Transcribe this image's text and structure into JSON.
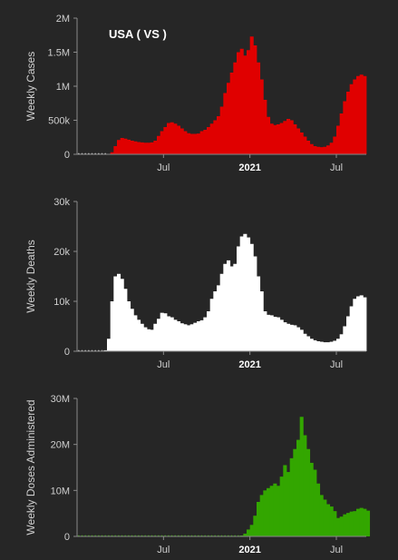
{
  "colors": {
    "background": "#262626",
    "axis": "#8a8a8a",
    "text": "#cfcfcf",
    "title": "#ffffff"
  },
  "chart_data": [
    {
      "type": "bar",
      "title": "USA  ( VS )",
      "ylabel": "Weekly Cases",
      "ylim": [
        0,
        2000000
      ],
      "yticks": [
        {
          "value": 0,
          "label": "0"
        },
        {
          "value": 500000,
          "label": "500k"
        },
        {
          "value": 1000000,
          "label": "1M"
        },
        {
          "value": 1500000,
          "label": "1.5M"
        },
        {
          "value": 2000000,
          "label": "2M"
        }
      ],
      "xticks": [
        {
          "week": 26,
          "label": "Jul",
          "bold": false
        },
        {
          "week": 52,
          "label": "2021",
          "bold": true
        },
        {
          "week": 78,
          "label": "Jul",
          "bold": false
        }
      ],
      "color": "#e00000",
      "weeks": 87,
      "values": [
        0,
        0,
        0,
        0,
        0,
        0,
        0,
        0,
        0,
        5000,
        30000,
        120000,
        210000,
        240000,
        230000,
        215000,
        200000,
        190000,
        180000,
        175000,
        170000,
        170000,
        175000,
        200000,
        270000,
        340000,
        400000,
        460000,
        470000,
        450000,
        420000,
        380000,
        340000,
        310000,
        300000,
        300000,
        305000,
        340000,
        360000,
        400000,
        450000,
        500000,
        560000,
        700000,
        900000,
        1050000,
        1200000,
        1350000,
        1500000,
        1550000,
        1450000,
        1530000,
        1730000,
        1600000,
        1350000,
        1100000,
        800000,
        550000,
        450000,
        430000,
        440000,
        460000,
        490000,
        520000,
        500000,
        440000,
        380000,
        320000,
        260000,
        200000,
        150000,
        120000,
        110000,
        105000,
        110000,
        130000,
        170000,
        260000,
        420000,
        600000,
        780000,
        920000,
        1030000,
        1100000,
        1150000,
        1170000,
        1150000
      ]
    },
    {
      "type": "bar",
      "ylabel": "Weekly Deaths",
      "ylim": [
        0,
        30000
      ],
      "yticks": [
        {
          "value": 0,
          "label": "0"
        },
        {
          "value": 10000,
          "label": "10k"
        },
        {
          "value": 20000,
          "label": "20k"
        },
        {
          "value": 30000,
          "label": "30k"
        }
      ],
      "xticks": [
        {
          "week": 26,
          "label": "Jul",
          "bold": false
        },
        {
          "week": 52,
          "label": "2021",
          "bold": true
        },
        {
          "week": 78,
          "label": "Jul",
          "bold": false
        }
      ],
      "color": "#ffffff",
      "weeks": 87,
      "values": [
        0,
        0,
        0,
        0,
        0,
        0,
        0,
        0,
        200,
        2500,
        10000,
        15000,
        15500,
        14500,
        12500,
        10000,
        8500,
        7200,
        6300,
        5500,
        4800,
        4400,
        4300,
        5500,
        6500,
        7700,
        7600,
        7000,
        6800,
        6300,
        6000,
        5600,
        5400,
        5200,
        5400,
        5700,
        6000,
        6200,
        6800,
        8000,
        10500,
        12000,
        13200,
        15500,
        17500,
        18200,
        17000,
        17500,
        21000,
        23000,
        23500,
        22800,
        21500,
        19000,
        15000,
        12000,
        8000,
        7300,
        7200,
        6900,
        6800,
        6300,
        5800,
        5500,
        5300,
        5200,
        4800,
        4300,
        3500,
        3000,
        2500,
        2200,
        2000,
        1900,
        1800,
        1800,
        1900,
        2100,
        2500,
        3400,
        5000,
        7000,
        9000,
        10500,
        11000,
        11200,
        10800
      ]
    },
    {
      "type": "bar",
      "ylabel": "Weekly Doses Administered",
      "ylim": [
        0,
        30000000
      ],
      "yticks": [
        {
          "value": 0,
          "label": "0"
        },
        {
          "value": 10000000,
          "label": "10M"
        },
        {
          "value": 20000000,
          "label": "20M"
        },
        {
          "value": 30000000,
          "label": "30M"
        }
      ],
      "xticks": [
        {
          "week": 26,
          "label": "Jul",
          "bold": false
        },
        {
          "week": 52,
          "label": "2021",
          "bold": true
        },
        {
          "week": 78,
          "label": "Jul",
          "bold": false
        }
      ],
      "color": "#33a600",
      "weeks": 87,
      "values": [
        0,
        0,
        0,
        0,
        0,
        0,
        0,
        0,
        0,
        0,
        0,
        0,
        0,
        0,
        0,
        0,
        0,
        0,
        0,
        0,
        0,
        0,
        0,
        0,
        0,
        0,
        0,
        0,
        0,
        0,
        0,
        0,
        0,
        0,
        0,
        0,
        0,
        0,
        0,
        0,
        0,
        0,
        0,
        0,
        0,
        0,
        0,
        0,
        0,
        200000,
        600000,
        1500000,
        2500000,
        4500000,
        7500000,
        9000000,
        10000000,
        10500000,
        11000000,
        11500000,
        11000000,
        13000000,
        15500000,
        14000000,
        17000000,
        19000000,
        21000000,
        26000000,
        22000000,
        19000000,
        16000000,
        14500000,
        11500000,
        9000000,
        8000000,
        7000000,
        6500000,
        5500000,
        4000000,
        4300000,
        4800000,
        5100000,
        5400000,
        5500000,
        6000000,
        6200000,
        6000000,
        5600000
      ]
    }
  ]
}
